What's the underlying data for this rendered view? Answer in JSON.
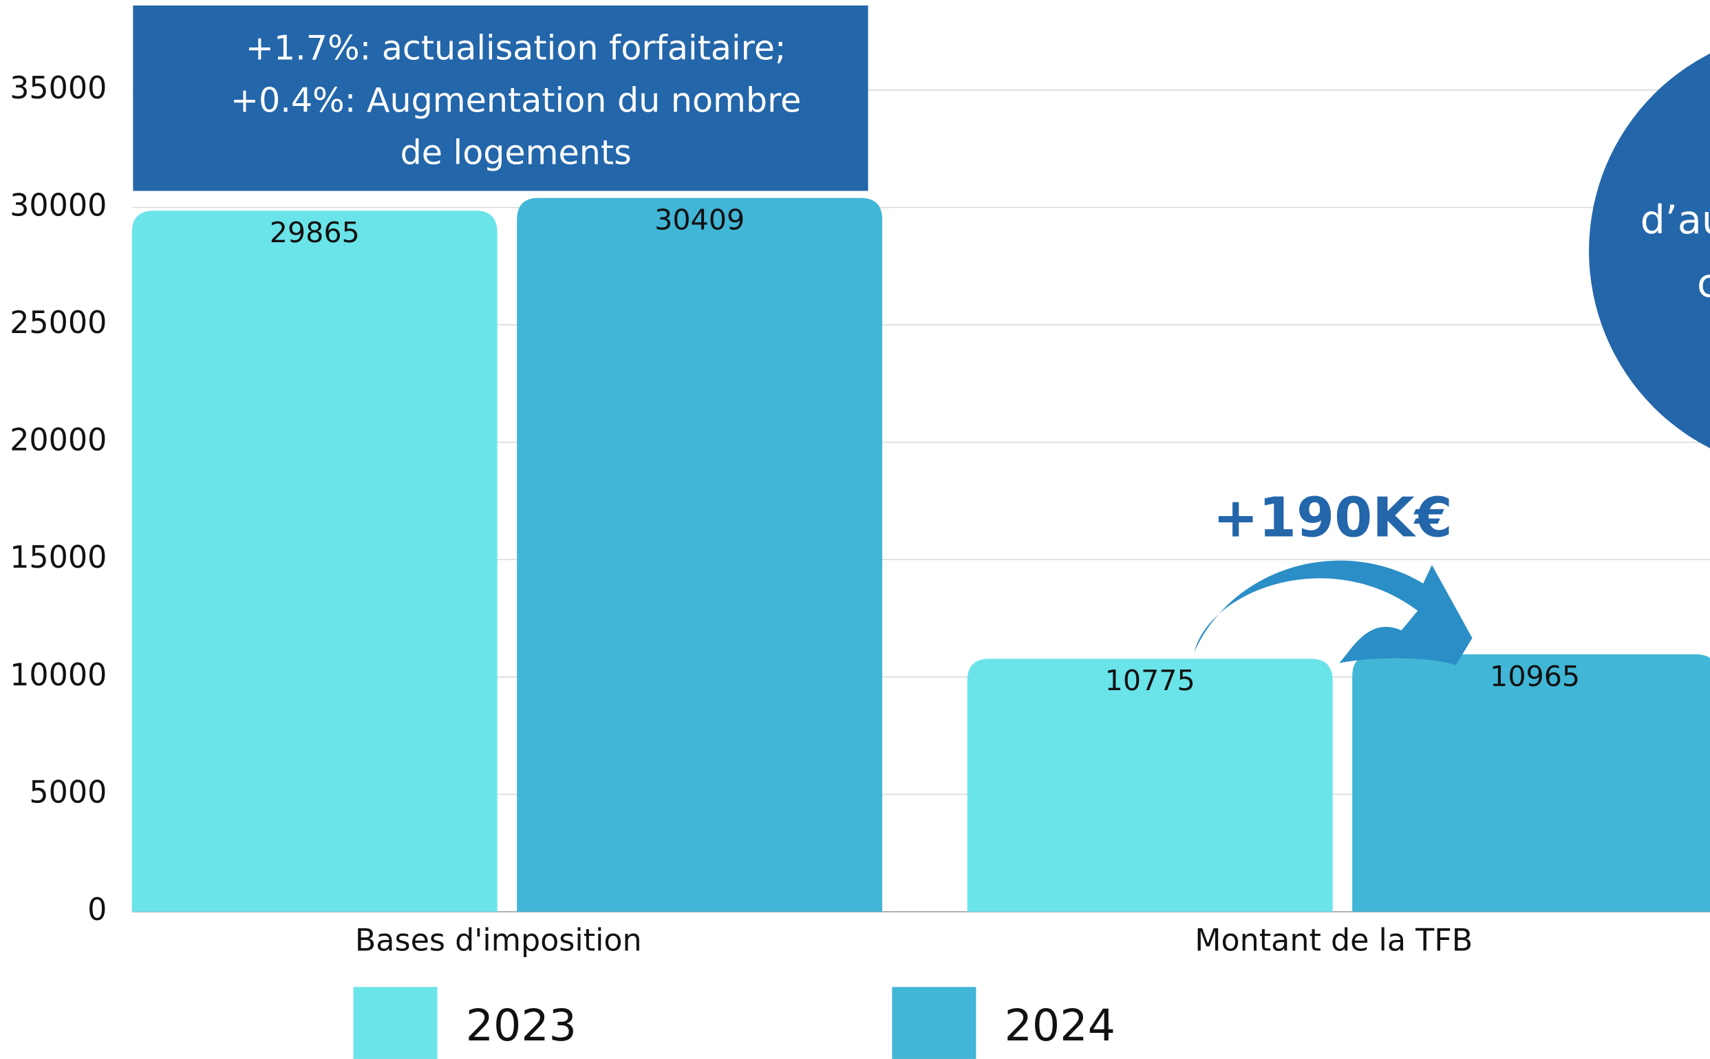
{
  "chart_data": {
    "type": "bar",
    "categories": [
      "Bases d'imposition",
      "Montant de la TFB"
    ],
    "series": [
      {
        "name": "2023",
        "color": "#6ae4e9",
        "values": [
          29865,
          10775
        ]
      },
      {
        "name": "2024",
        "color": "#41b6d6",
        "values": [
          30409,
          10965
        ]
      }
    ],
    "ylim": [
      0,
      38000
    ],
    "yticks": [
      0,
      5000,
      10000,
      15000,
      20000,
      25000,
      30000,
      35000
    ],
    "grid": true,
    "annotations": {
      "box": [
        "+1.7%: actualisation forfaitaire;",
        "+0.4%: Augmentation du nombre",
        "de logements"
      ],
      "change": "+190K€",
      "circle": [
        "d’au",
        "c"
      ]
    }
  }
}
